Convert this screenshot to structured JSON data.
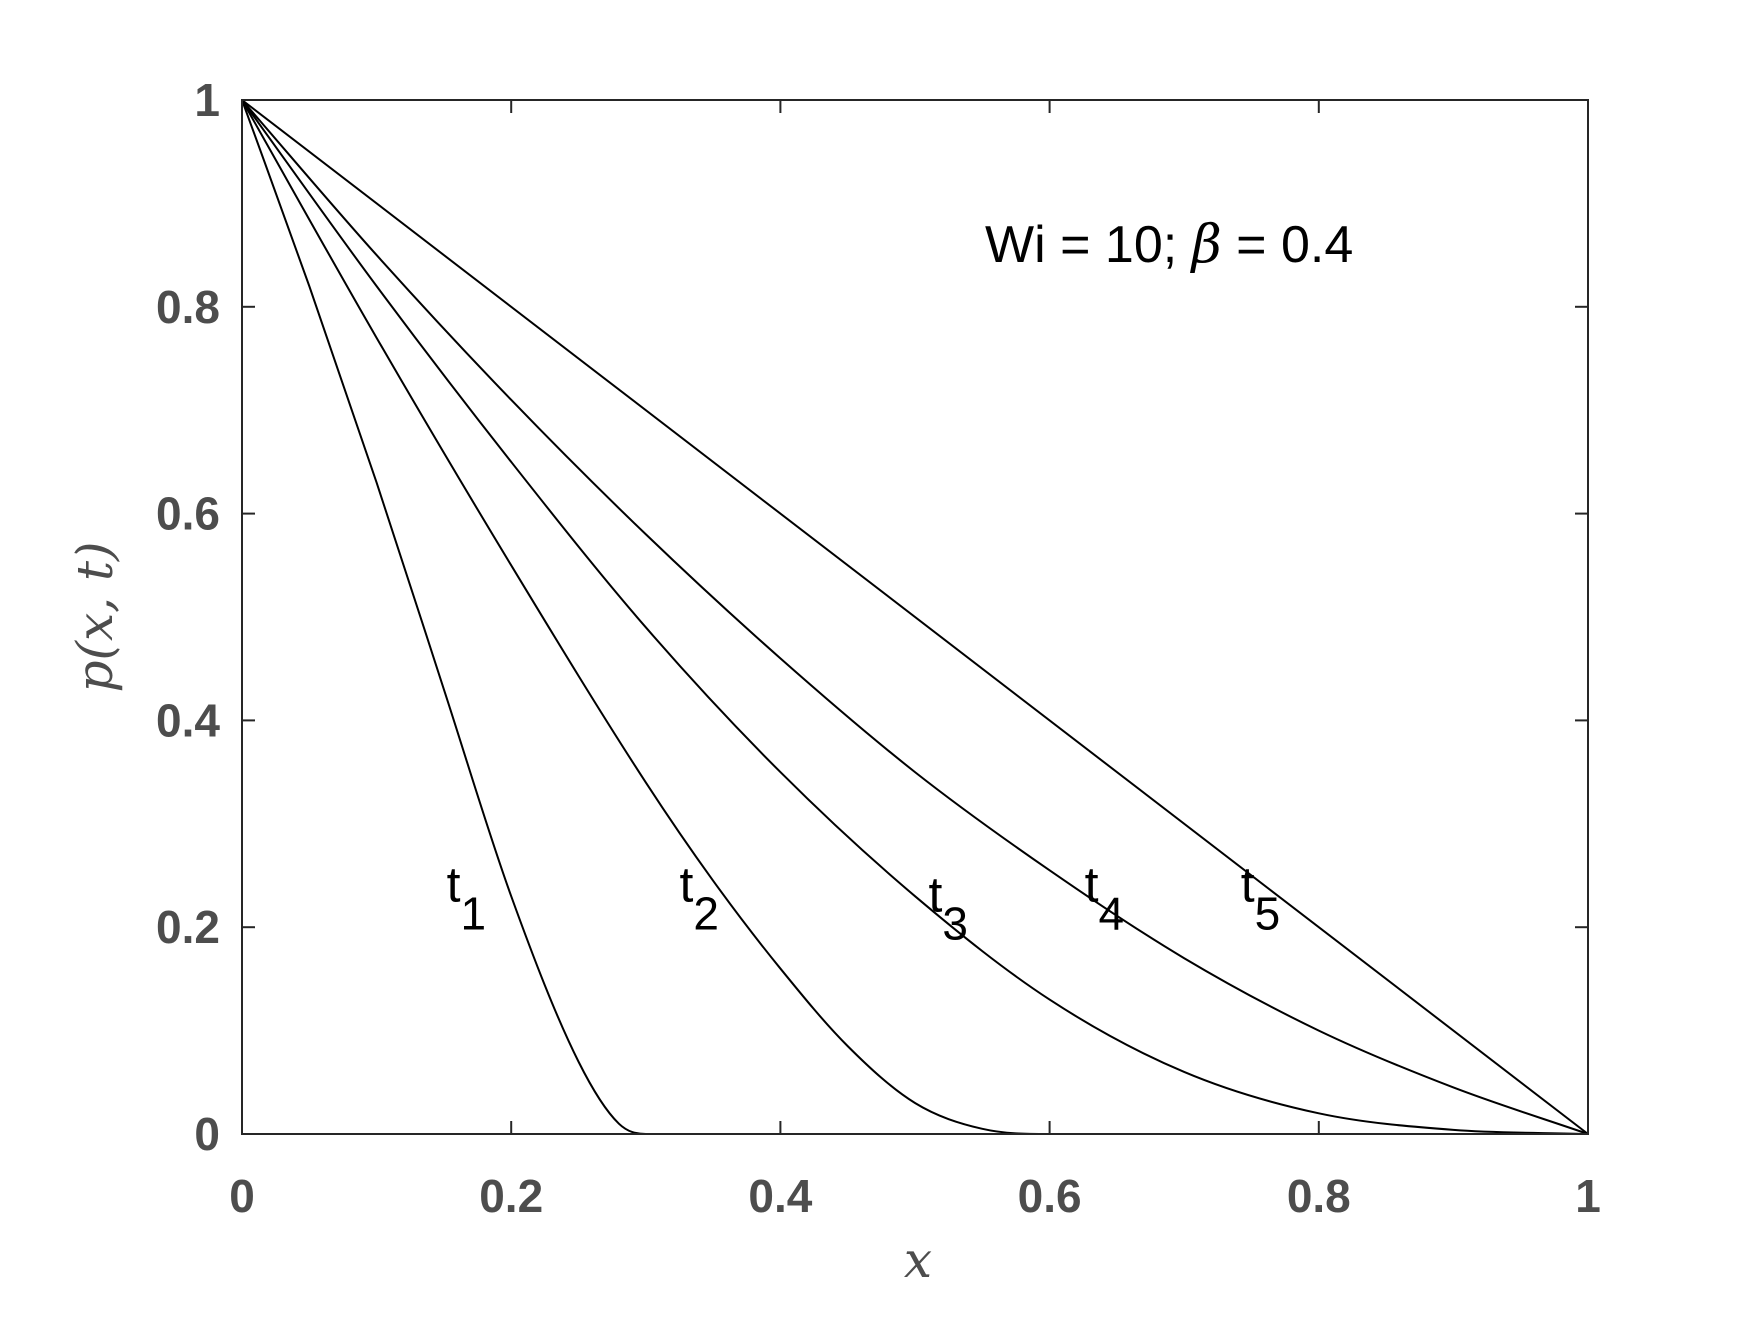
{
  "chart_data": {
    "type": "line",
    "xlabel": "x",
    "ylabel": "p(x, t)",
    "xlim": [
      0,
      1
    ],
    "ylim": [
      0,
      1
    ],
    "xticks": [
      "0",
      "0.2",
      "0.4",
      "0.6",
      "0.8",
      "1"
    ],
    "yticks": [
      "0",
      "0.2",
      "0.4",
      "0.6",
      "0.8",
      "1"
    ],
    "grid": false,
    "legend": "none",
    "annotation": {
      "prefix": "Wi = 10; ",
      "symbol": "β",
      "suffix": " = 0.4"
    },
    "series": [
      {
        "name": "t1",
        "label_base": "t",
        "label_sub": "1",
        "x": [
          0,
          0.05,
          0.1,
          0.15,
          0.2,
          0.25,
          0.28,
          0.3,
          0.4,
          0.6,
          0.8,
          1
        ],
        "y": [
          1,
          0.82,
          0.63,
          0.43,
          0.23,
          0.07,
          0.01,
          0,
          0,
          0,
          0,
          0
        ]
      },
      {
        "name": "t2",
        "label_base": "t",
        "label_sub": "2",
        "x": [
          0,
          0.1,
          0.2,
          0.3,
          0.35,
          0.4,
          0.45,
          0.5,
          0.55,
          0.6,
          0.8,
          1
        ],
        "y": [
          1,
          0.77,
          0.55,
          0.34,
          0.245,
          0.16,
          0.085,
          0.03,
          0.005,
          0,
          0,
          0
        ]
      },
      {
        "name": "t3",
        "label_base": "t",
        "label_sub": "3",
        "x": [
          0,
          0.1,
          0.2,
          0.3,
          0.4,
          0.5,
          0.6,
          0.7,
          0.8,
          0.9,
          1
        ],
        "y": [
          1,
          0.82,
          0.65,
          0.49,
          0.35,
          0.23,
          0.13,
          0.06,
          0.02,
          0.004,
          0
        ]
      },
      {
        "name": "t4",
        "label_base": "t",
        "label_sub": "4",
        "x": [
          0,
          0.1,
          0.2,
          0.3,
          0.4,
          0.5,
          0.6,
          0.7,
          0.8,
          0.9,
          1
        ],
        "y": [
          1,
          0.85,
          0.71,
          0.58,
          0.46,
          0.35,
          0.255,
          0.17,
          0.1,
          0.045,
          0
        ]
      },
      {
        "name": "t5",
        "label_base": "t",
        "label_sub": "5",
        "x": [
          0,
          1
        ],
        "y": [
          1,
          0
        ]
      }
    ]
  }
}
